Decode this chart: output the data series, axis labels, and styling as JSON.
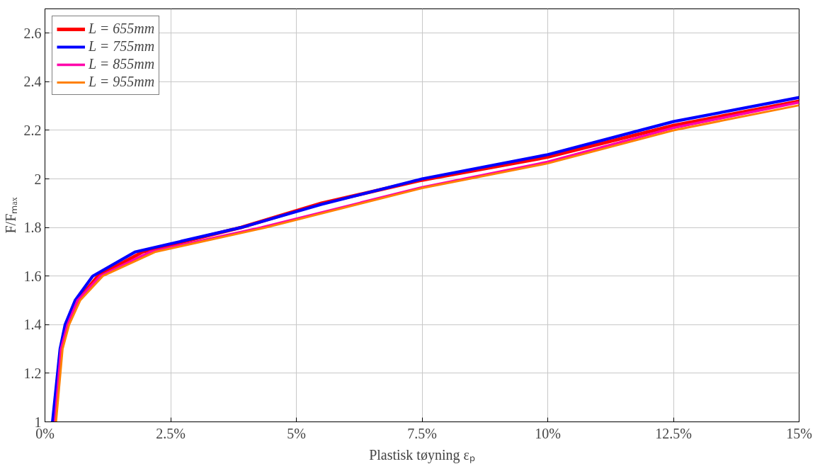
{
  "chart_data": {
    "type": "line",
    "xlabel": "Plastisk tøyning εₚ",
    "ylabel": "F/Fₘₐₓ",
    "xlim": [
      0,
      15
    ],
    "ylim": [
      1,
      2.7
    ],
    "xticks": [
      {
        "value": 0,
        "label": "0%"
      },
      {
        "value": 2.5,
        "label": "2.5%"
      },
      {
        "value": 5,
        "label": "5%"
      },
      {
        "value": 7.5,
        "label": "7.5%"
      },
      {
        "value": 10,
        "label": "10%"
      },
      {
        "value": 12.5,
        "label": "12.5%"
      },
      {
        "value": 15,
        "label": "15%"
      }
    ],
    "yticks": [
      1,
      1.2,
      1.4,
      1.6,
      1.8,
      2,
      2.2,
      2.4,
      2.6
    ],
    "grid": true,
    "legend": "top left",
    "line_style": "solid",
    "marker": "none",
    "series": [
      {
        "name": "L = 655mm",
        "color": "#ff0000",
        "x": [
          0.18,
          0.32,
          0.45,
          0.65,
          1.05,
          1.95,
          3.9,
          5.5,
          7.5,
          10,
          12.5,
          15
        ],
        "values": [
          1.0,
          1.3,
          1.4,
          1.5,
          1.6,
          1.7,
          1.8,
          1.9,
          1.995,
          2.09,
          2.22,
          2.32
        ]
      },
      {
        "name": "L = 755mm",
        "color": "#0000ff",
        "x": [
          0.15,
          0.3,
          0.4,
          0.6,
          0.95,
          1.8,
          3.9,
          5.5,
          7.5,
          10,
          12.5,
          15
        ],
        "values": [
          1.0,
          1.3,
          1.4,
          1.5,
          1.6,
          1.7,
          1.8,
          1.895,
          2.0,
          2.1,
          2.236,
          2.335
        ]
      },
      {
        "name": "L = 855mm",
        "color": "#ff00aa",
        "x": [
          0.2,
          0.32,
          0.45,
          0.65,
          1.1,
          2.1,
          4.3,
          7.5,
          10,
          12.5,
          15
        ],
        "values": [
          1.0,
          1.3,
          1.4,
          1.5,
          1.6,
          1.7,
          1.8,
          1.965,
          2.07,
          2.21,
          2.315
        ]
      },
      {
        "name": "L = 955mm",
        "color": "#ff8000",
        "x": [
          0.22,
          0.35,
          0.48,
          0.7,
          1.15,
          2.2,
          4.4,
          7.5,
          10,
          12.5,
          15
        ],
        "values": [
          1.0,
          1.3,
          1.4,
          1.5,
          1.6,
          1.7,
          1.8,
          1.962,
          2.064,
          2.2,
          2.303
        ]
      }
    ]
  }
}
